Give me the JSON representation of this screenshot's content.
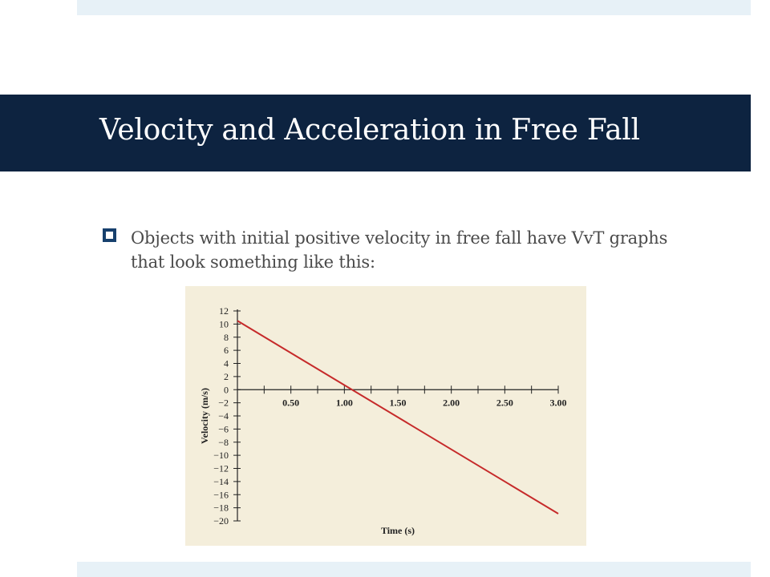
{
  "slide": {
    "title": "Velocity and Acceleration in Free Fall",
    "bullet": "Objects with initial positive velocity in free fall have VvT graphs that look something like this:"
  },
  "colors": {
    "title_bar": "#0d2340",
    "line": "#c62a2a",
    "chart_bg": "#f4eedb",
    "bullet": "#17406d"
  },
  "chart_data": {
    "type": "line",
    "xlabel": "Time (s)",
    "ylabel": "Velocity (m/s)",
    "xlim": [
      0,
      3.0
    ],
    "ylim": [
      -20,
      12
    ],
    "x_ticks": [
      0.5,
      1.0,
      1.5,
      2.0,
      2.5,
      3.0
    ],
    "x_tick_labels": [
      "0.50",
      "1.00",
      "1.50",
      "2.00",
      "2.50",
      "3.00"
    ],
    "y_ticks": [
      12,
      10,
      8,
      6,
      4,
      2,
      0,
      -2,
      -4,
      -6,
      -8,
      -10,
      -12,
      -14,
      -16,
      -18,
      -20
    ],
    "y_tick_labels": [
      "12",
      "10",
      "8",
      "6",
      "4",
      "2",
      "0",
      "−2",
      "−4",
      "−6",
      "−8",
      "−10",
      "−12",
      "−14",
      "−16",
      "−18",
      "−20"
    ],
    "series": [
      {
        "x": [
          0,
          3.0
        ],
        "y": [
          10.5,
          -18.9
        ]
      }
    ],
    "grid": false
  }
}
